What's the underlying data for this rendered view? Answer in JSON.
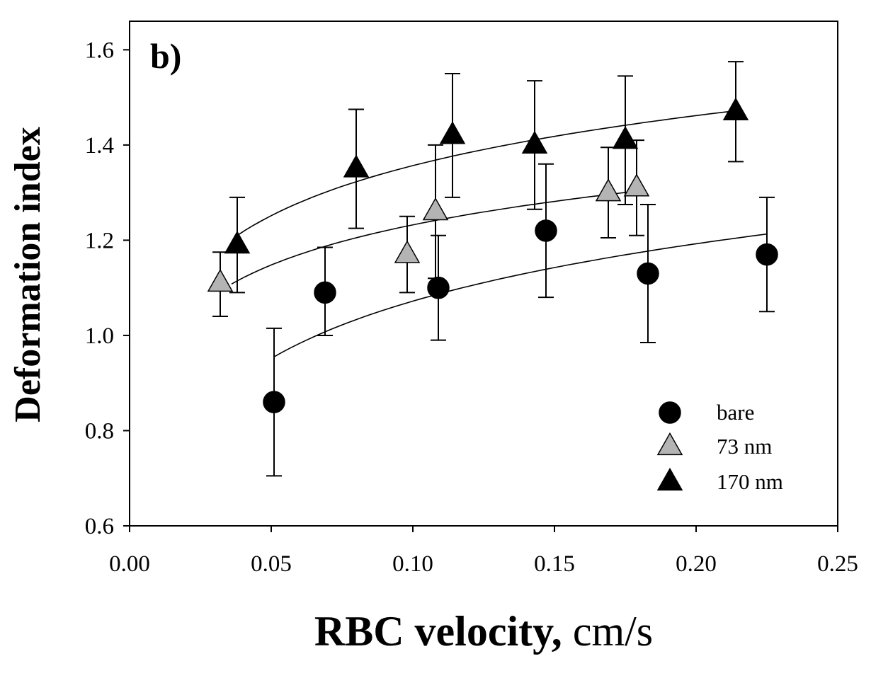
{
  "chart_data": {
    "type": "scatter",
    "panel_label": "b)",
    "xlabel": {
      "bold": "RBC velocity,",
      "normal": " cm/s"
    },
    "ylabel": "Deformation index",
    "xlim": [
      0.0,
      0.25
    ],
    "ylim": [
      0.6,
      1.66
    ],
    "xticks": [
      "0.00",
      "0.05",
      "0.10",
      "0.15",
      "0.20",
      "0.25"
    ],
    "xtick_values": [
      0.0,
      0.05,
      0.1,
      0.15,
      0.2,
      0.25
    ],
    "yticks": [
      "0.6",
      "0.8",
      "1.0",
      "1.2",
      "1.4",
      "1.6"
    ],
    "ytick_values": [
      0.6,
      0.8,
      1.0,
      1.2,
      1.4,
      1.6
    ],
    "grid": false,
    "legend_position": "bottom-right",
    "series": [
      {
        "name": "bare",
        "marker": "circle",
        "fill": "#000000",
        "points": [
          {
            "x": 0.051,
            "y": 0.86,
            "err_low": 0.155,
            "err_high": 0.155
          },
          {
            "x": 0.069,
            "y": 1.09,
            "err_low": 0.09,
            "err_high": 0.095
          },
          {
            "x": 0.109,
            "y": 1.1,
            "err_low": 0.11,
            "err_high": 0.11
          },
          {
            "x": 0.147,
            "y": 1.22,
            "err_low": 0.14,
            "err_high": 0.14
          },
          {
            "x": 0.183,
            "y": 1.13,
            "err_low": 0.145,
            "err_high": 0.145
          },
          {
            "x": 0.225,
            "y": 1.17,
            "err_low": 0.12,
            "err_high": 0.12
          }
        ],
        "fit": {
          "x0": 0.051,
          "x1": 0.225,
          "y0": 0.955,
          "y1": 1.213
        }
      },
      {
        "name": "73 nm",
        "marker": "triangle",
        "fill": "#b4b4b4",
        "points": [
          {
            "x": 0.032,
            "y": 1.11,
            "err_low": 0.07,
            "err_high": 0.065
          },
          {
            "x": 0.098,
            "y": 1.17,
            "err_low": 0.08,
            "err_high": 0.08
          },
          {
            "x": 0.108,
            "y": 1.26,
            "err_low": 0.14,
            "err_high": 0.14
          },
          {
            "x": 0.169,
            "y": 1.3,
            "err_low": 0.095,
            "err_high": 0.095
          },
          {
            "x": 0.179,
            "y": 1.31,
            "err_low": 0.1,
            "err_high": 0.1
          }
        ],
        "fit": {
          "x0": 0.036,
          "x1": 0.179,
          "y0": 1.108,
          "y1": 1.303
        }
      },
      {
        "name": "170 nm",
        "marker": "triangle",
        "fill": "#000000",
        "points": [
          {
            "x": 0.038,
            "y": 1.19,
            "err_low": 0.1,
            "err_high": 0.1
          },
          {
            "x": 0.08,
            "y": 1.35,
            "err_low": 0.125,
            "err_high": 0.125
          },
          {
            "x": 0.114,
            "y": 1.42,
            "err_low": 0.13,
            "err_high": 0.13
          },
          {
            "x": 0.143,
            "y": 1.4,
            "err_low": 0.135,
            "err_high": 0.135
          },
          {
            "x": 0.175,
            "y": 1.41,
            "err_low": 0.135,
            "err_high": 0.135
          },
          {
            "x": 0.214,
            "y": 1.47,
            "err_low": 0.105,
            "err_high": 0.105
          }
        ],
        "fit": {
          "x0": 0.038,
          "x1": 0.214,
          "y0": 1.21,
          "y1": 1.472
        }
      }
    ],
    "legend": [
      {
        "label": "bare",
        "marker": "circle",
        "fill": "#000000"
      },
      {
        "label": "73 nm",
        "marker": "triangle",
        "fill": "#b4b4b4"
      },
      {
        "label": "170 nm",
        "marker": "triangle",
        "fill": "#000000"
      }
    ]
  }
}
